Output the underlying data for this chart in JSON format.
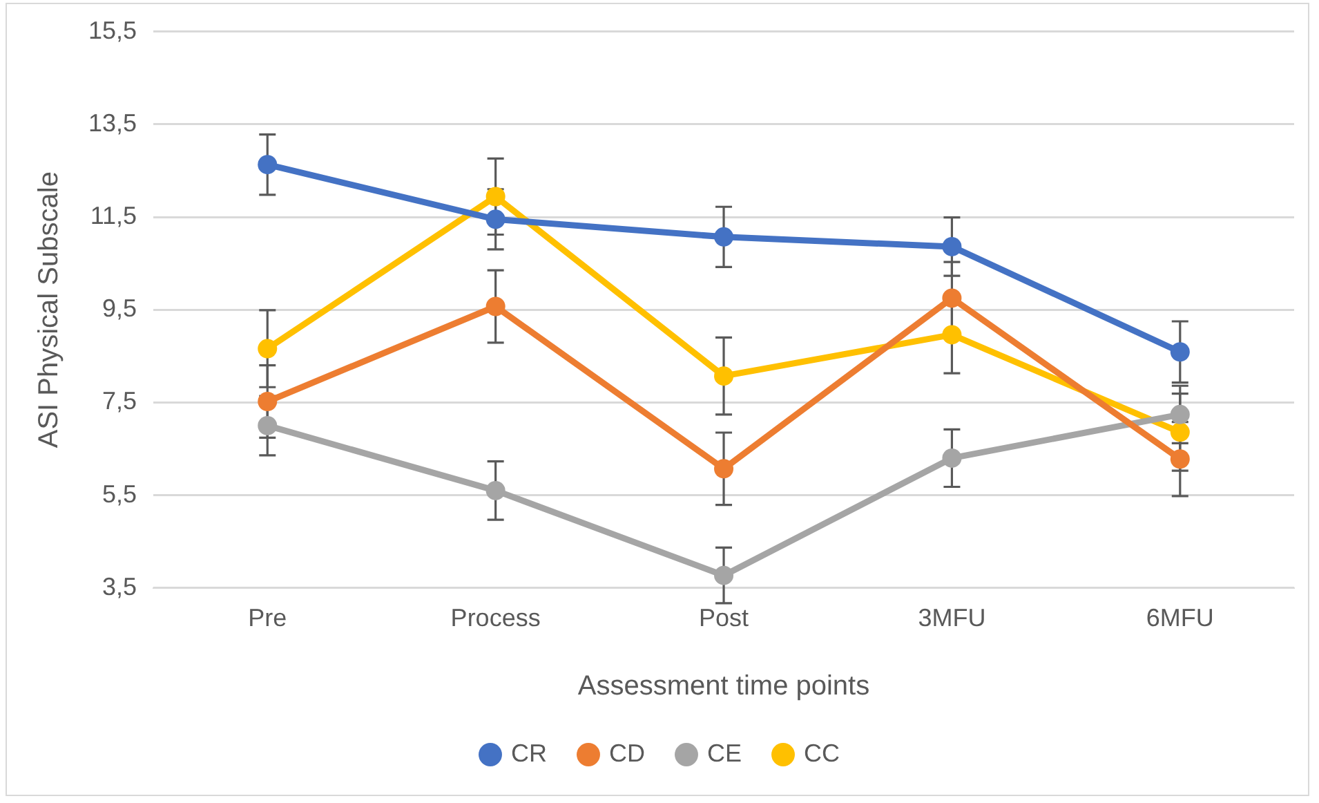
{
  "chart_data": {
    "type": "line",
    "xlabel": "Assessment time points",
    "ylabel": "ASI Physical Subscale",
    "categories": [
      "Pre",
      "Process",
      "Post",
      "3MFU",
      "6MFU"
    ],
    "series": [
      {
        "name": "CR",
        "color": "#4472c4",
        "values": [
          12.63,
          11.45,
          11.07,
          10.86,
          8.59
        ],
        "errors": [
          0.65,
          0.65,
          0.65,
          0.63,
          0.66
        ]
      },
      {
        "name": "CD",
        "color": "#ed7d31",
        "values": [
          7.52,
          9.57,
          6.07,
          9.75,
          6.28
        ],
        "errors": [
          0.78,
          0.78,
          0.78,
          0.78,
          0.8
        ]
      },
      {
        "name": "CE",
        "color": "#a5a5a5",
        "values": [
          7.0,
          5.6,
          3.77,
          6.3,
          7.24
        ],
        "errors": [
          0.64,
          0.63,
          0.6,
          0.62,
          0.62
        ]
      },
      {
        "name": "CC",
        "color": "#ffc000",
        "values": [
          8.66,
          11.94,
          8.07,
          8.96,
          6.86
        ],
        "errors": [
          0.83,
          0.82,
          0.83,
          0.83,
          0.83
        ]
      }
    ],
    "ylim": [
      3.5,
      15.5
    ],
    "yticks": [
      {
        "value": 3.5,
        "label": "3,5"
      },
      {
        "value": 5.5,
        "label": "5,5"
      },
      {
        "value": 7.5,
        "label": "7,5"
      },
      {
        "value": 9.5,
        "label": "9,5"
      },
      {
        "value": 11.5,
        "label": "11,5"
      },
      {
        "value": 13.5,
        "label": "13,5"
      },
      {
        "value": 15.5,
        "label": "15,5"
      }
    ],
    "grid": "y",
    "legend": "bottom",
    "marker": "circle",
    "line_style": "solid"
  }
}
